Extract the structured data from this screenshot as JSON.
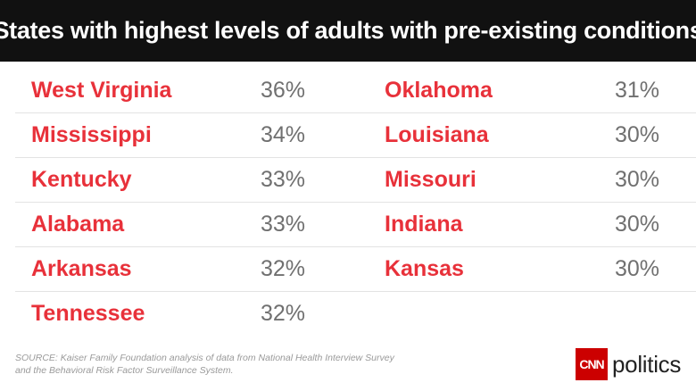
{
  "chart_data": {
    "type": "table",
    "title": "States with highest levels of adults with pre-existing conditions",
    "columns": [
      [
        {
          "state": "West Virginia",
          "percent": "36%"
        },
        {
          "state": "Mississippi",
          "percent": "34%"
        },
        {
          "state": "Kentucky",
          "percent": "33%"
        },
        {
          "state": "Alabama",
          "percent": "33%"
        },
        {
          "state": "Arkansas",
          "percent": "32%"
        },
        {
          "state": "Tennessee",
          "percent": "32%"
        }
      ],
      [
        {
          "state": "Oklahoma",
          "percent": "31%"
        },
        {
          "state": "Louisiana",
          "percent": "30%"
        },
        {
          "state": "Missouri",
          "percent": "30%"
        },
        {
          "state": "Indiana",
          "percent": "30%"
        },
        {
          "state": "Kansas",
          "percent": "30%"
        }
      ]
    ]
  },
  "footer": {
    "source_line1": "SOURCE: Kaiser Family Foundation analysis of data from National Health Interview Survey",
    "source_line2": "and the Behavioral Risk Factor Surveillance System.",
    "logo_box": "CNN",
    "logo_text": "politics"
  },
  "colors": {
    "state_red": "#e8313a",
    "header_bg": "#111111",
    "cnn_red": "#cc0000"
  }
}
